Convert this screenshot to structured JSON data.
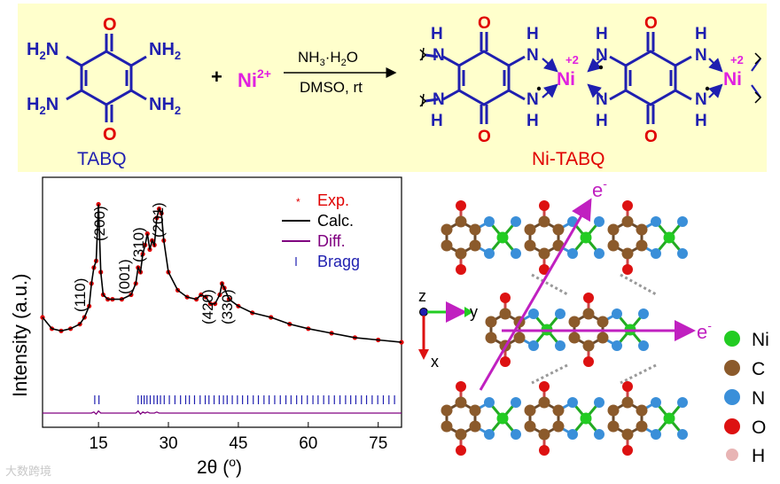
{
  "scheme": {
    "tabq": {
      "O": "O",
      "N": "N",
      "H2": "H",
      "sub2": "2",
      "name": "TABQ"
    },
    "plus": "+",
    "ni": "Ni",
    "ni_charge": "2+",
    "reagent1": "NH",
    "reagent1_sub": "3",
    "reagent1_rest": "·H",
    "reagent1_sub2": "2",
    "reagent1_end": "O",
    "reagent2": "DMSO, rt",
    "product": {
      "H": "H",
      "N": "N",
      "O": "O",
      "Ni": "Ni",
      "charge": "+2",
      "name": "Ni-TABQ"
    },
    "colors": {
      "fill": "#ffffcc",
      "blue": "#1f1fb0",
      "red": "#e00000",
      "magenta": "#e020e0",
      "black": "#000000"
    }
  },
  "xrd": {
    "ylabel": "Intensity (a.u.)",
    "xlabel": "2θ (",
    "xlabel_unit": "o",
    "xlabel_close": ")",
    "xticks": [
      "15",
      "30",
      "45",
      "60",
      "75"
    ],
    "peaks": [
      "(110)",
      "(200)",
      "(001)",
      "(310)",
      "(201)",
      "(420)",
      "(330)"
    ],
    "legend": [
      {
        "symbol": "*",
        "label": "Exp.",
        "color": "#e00000"
      },
      {
        "symbol": "—",
        "label": "Calc.",
        "color": "#000000"
      },
      {
        "symbol": "—",
        "label": "Diff.",
        "color": "#800080"
      },
      {
        "symbol": "|",
        "label": "Bragg",
        "color": "#1f1fb0"
      }
    ]
  },
  "chart_data": {
    "type": "line",
    "xlim": [
      3,
      80
    ],
    "ylim": [
      0,
      100
    ],
    "xlabel": "2θ (o)",
    "ylabel": "Intensity (a.u.)",
    "x": [
      3,
      5,
      7,
      9,
      11,
      12,
      13,
      13.5,
      14,
      14.5,
      15,
      15.5,
      16,
      17,
      18,
      20,
      22,
      23,
      23.5,
      24,
      24.5,
      25,
      25.5,
      26,
      26.5,
      27,
      27.5,
      28,
      28.5,
      29,
      30,
      32,
      34,
      36,
      37,
      38,
      39,
      40,
      41,
      41.5,
      42,
      43,
      45,
      48,
      52,
      56,
      60,
      65,
      70,
      75,
      80
    ],
    "series": [
      {
        "name": "Exp.",
        "values": [
          40,
          35,
          34,
          35,
          37,
          40,
          45,
          55,
          62,
          65,
          90,
          60,
          50,
          48,
          48,
          48,
          50,
          55,
          62,
          60,
          68,
          72,
          77,
          70,
          74,
          72,
          84,
          88,
          86,
          74,
          60,
          52,
          49,
          48,
          50,
          49,
          46,
          46,
          50,
          55,
          53,
          48,
          45,
          42,
          40,
          37,
          35,
          33,
          31,
          30,
          29
        ]
      },
      {
        "name": "Calc.",
        "values": [
          40,
          35,
          34,
          35,
          37,
          40,
          45,
          55,
          62,
          65,
          90,
          60,
          50,
          48,
          48,
          48,
          50,
          55,
          62,
          60,
          68,
          72,
          77,
          70,
          74,
          72,
          84,
          88,
          86,
          74,
          60,
          52,
          49,
          48,
          50,
          49,
          46,
          46,
          50,
          55,
          53,
          48,
          45,
          42,
          40,
          37,
          35,
          33,
          31,
          30,
          29
        ]
      },
      {
        "name": "Diff.",
        "values": [
          5,
          5,
          5,
          5,
          5,
          5,
          5,
          5,
          6,
          4,
          7,
          5,
          5,
          5,
          5,
          5,
          5,
          5,
          7,
          4,
          6,
          5,
          6,
          5,
          5,
          5,
          6,
          5,
          5,
          5,
          5,
          5,
          5,
          5,
          5,
          5,
          5,
          5,
          5,
          5,
          5,
          5,
          5,
          5,
          5,
          5,
          5,
          5,
          5,
          5,
          5
        ]
      }
    ],
    "bragg_positions": [
      14.2,
      15.1,
      23.5,
      24.2,
      24.8,
      25.4,
      26.1,
      26.9,
      27.6,
      28.3,
      29.1,
      30.2,
      31.4,
      32.6,
      33.7,
      34.5,
      35.6,
      36.8,
      37.9,
      38.7,
      39.8,
      40.9,
      41.8,
      42.6,
      43.7,
      44.8,
      45.9,
      47.0,
      48.2,
      49.3,
      50.5,
      51.6,
      52.8,
      54.0,
      55.2,
      56.3,
      57.5,
      58.6,
      59.8,
      61.0,
      62.1,
      63.3,
      64.4,
      65.6,
      66.8,
      68.0,
      69.1,
      70.2,
      71.4,
      72.5,
      73.7,
      74.9,
      76.1,
      77.3,
      78.5
    ]
  },
  "structure": {
    "axis_z": "z",
    "axis_y": "y",
    "axis_x": "x",
    "electron": "e",
    "electron_sup": "-",
    "legend": [
      {
        "label": "Ni",
        "color": "#22cc22"
      },
      {
        "label": "C",
        "color": "#8b5a2b"
      },
      {
        "label": "N",
        "color": "#3a8fd9"
      },
      {
        "label": "O",
        "color": "#dd1111"
      },
      {
        "label": "H",
        "color": "#e8b4b4"
      }
    ]
  },
  "watermark": "大数跨境"
}
